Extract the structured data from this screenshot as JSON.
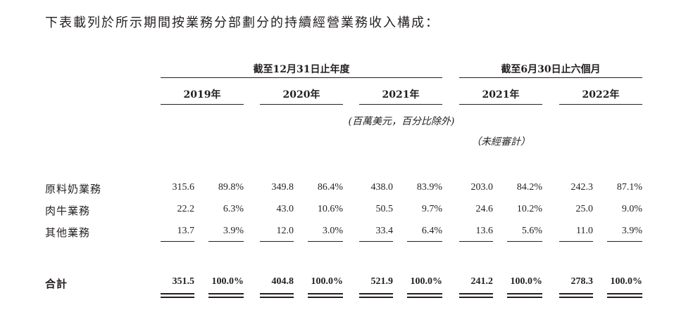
{
  "intro": "下表載列於所示期間按業務分部劃分的持續經營業務收入構成：",
  "header": {
    "group_annual": "截至12月31日止年度",
    "group_interim": "截至6月30日止六個月",
    "years": [
      "2019年",
      "2020年",
      "2021年",
      "2021年",
      "2022年"
    ],
    "unit_note": "(百萬美元，百分比除外)",
    "unaudited_note": "（未經審計）"
  },
  "rows": [
    {
      "label": "原料奶業務",
      "values": [
        "315.6",
        "89.8%",
        "349.8",
        "86.4%",
        "438.0",
        "83.9%",
        "203.0",
        "84.2%",
        "242.3",
        "87.1%"
      ]
    },
    {
      "label": "肉牛業務",
      "values": [
        "22.2",
        "6.3%",
        "43.0",
        "10.6%",
        "50.5",
        "9.7%",
        "24.6",
        "10.2%",
        "25.0",
        "9.0%"
      ]
    },
    {
      "label": "其他業務",
      "values": [
        "13.7",
        "3.9%",
        "12.0",
        "3.0%",
        "33.4",
        "6.4%",
        "13.6",
        "5.6%",
        "11.0",
        "3.9%"
      ]
    }
  ],
  "total": {
    "label": "合計",
    "values": [
      "351.5",
      "100.0%",
      "404.8",
      "100.0%",
      "521.9",
      "100.0%",
      "241.2",
      "100.0%",
      "278.3",
      "100.0%"
    ]
  }
}
